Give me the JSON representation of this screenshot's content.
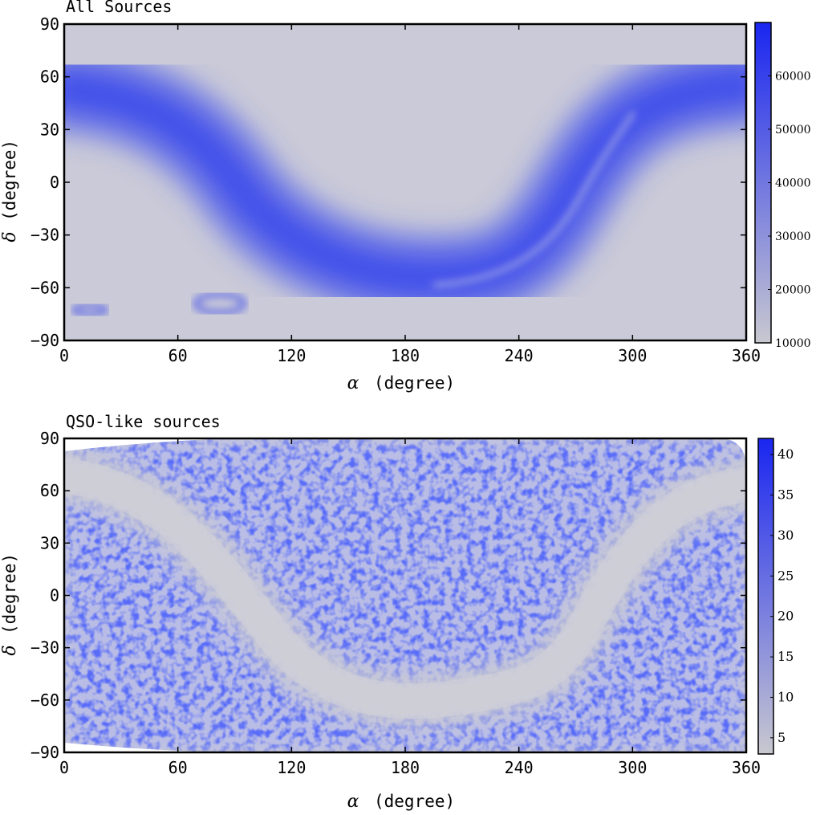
{
  "chart_data": [
    {
      "type": "heatmap",
      "title": "All Sources",
      "xlabel": "(degree)",
      "xlabel_symbol": "α",
      "ylabel": "(degree)",
      "ylabel_symbol": "δ",
      "xlim": [
        0,
        360
      ],
      "ylim": [
        -90,
        90
      ],
      "xticks": [
        0,
        60,
        120,
        180,
        240,
        300,
        360
      ],
      "yticks": [
        90,
        60,
        30,
        0,
        -30,
        -60,
        -90
      ],
      "colorbar": {
        "range": [
          10000,
          70000
        ],
        "ticks": [
          60000,
          50000,
          40000,
          30000,
          20000,
          10000
        ],
        "low_color": "#c8c8d0",
        "high_color": "#1a26f0"
      },
      "features": "Galactic-plane band of high source density forming an S-shaped curve across the sky; Magellanic Clouds visible as small rings near δ=-72°"
    },
    {
      "type": "heatmap",
      "title": "QSO-like sources",
      "xlabel": "(degree)",
      "xlabel_symbol": "α",
      "ylabel": "(degree)",
      "ylabel_symbol": "δ",
      "xlim": [
        0,
        360
      ],
      "ylim": [
        -90,
        90
      ],
      "xticks": [
        0,
        60,
        120,
        180,
        240,
        300,
        360
      ],
      "yticks": [
        90,
        60,
        30,
        0,
        -30,
        -60,
        -90
      ],
      "colorbar": {
        "range": [
          3,
          42
        ],
        "ticks": [
          40,
          35,
          30,
          25,
          20,
          15,
          10,
          5
        ],
        "low_color": "#c8c8d0",
        "high_color": "#1a26f0"
      },
      "features": "Mottled QSO density outside the galactic plane; the plane itself appears as an empty gray S-shaped band"
    }
  ]
}
